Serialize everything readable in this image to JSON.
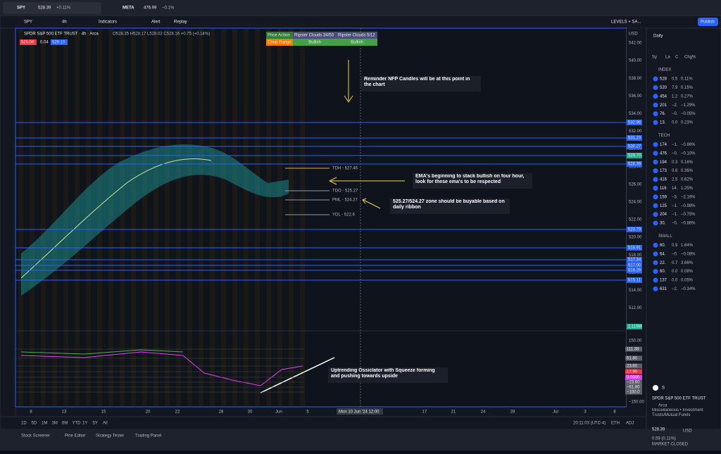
{
  "tabs": [
    {
      "symbol": "SPY",
      "price": "528.39",
      "change": "+0.11%"
    },
    {
      "symbol": "META",
      "price": "476.99",
      "change": "−0.1%"
    }
  ],
  "toolbar": {
    "symbol": "SPY",
    "interval": "4h",
    "indicators": "Indicators",
    "alert": "Alert",
    "replay": "Replay",
    "layout": "LEVELS + SA...",
    "publish": "Publish"
  },
  "legend": {
    "title": "SPDR S&P 500 ETF TRUST · 4h · Arca",
    "ohlc": "O528.35 H528.17 L528.02 C528.16 +0.75 (+0.14%)",
    "bid": "529.06",
    "spread": "0.04",
    "ask": "529.10"
  },
  "signal_table": {
    "headers": [
      "Price Action",
      "Ripster Clouds 34/50",
      "Ripster Clouds 5/12"
    ],
    "row": [
      "Chop Range",
      "Bullish",
      "Bullish"
    ]
  },
  "price_axis": {
    "currency": "USD",
    "labels": [
      "542.00",
      "540.00",
      "538.00",
      "536.00",
      "534.00",
      "532.00",
      "530.00",
      "528.00",
      "526.00",
      "524.00",
      "522.00",
      "520.00",
      "518.00",
      "516.00",
      "514.00",
      "512.00"
    ]
  },
  "levels": [
    "532.96",
    "531.23",
    "530.27",
    "529.70",
    "528.39",
    "520.79",
    "518.91",
    "517.34",
    "517.00",
    "516.28",
    "515.11"
  ],
  "volume_label": "2.119M",
  "chart_labels": [
    "TDH - 527.46",
    "TDO - 525.27",
    "PML - 524.27",
    "YDL - 522.6"
  ],
  "annotations": [
    "Reminder NFP Candles will be at this point in the chart",
    "EMA's beginning to stack bullish on four hour, look for these ema's to be respected",
    "525.27/524.27 zone should be buyable based on daily ribbon",
    "Uptrending Ossiclator with Squeeze forming and pushing towards upside"
  ],
  "indicator_axis": {
    "top": "150.00",
    "bottom": "−150.00",
    "labels": [
      "111.38",
      "61.80",
      "23.60",
      "17.90",
      "0.0000",
      "−23.60",
      "−61.80",
      "−100.0"
    ]
  },
  "time_axis": {
    "labels": [
      "8",
      "13",
      "15",
      "20",
      "22",
      "28",
      "30",
      "Jun",
      "5",
      "17",
      "21",
      "24",
      "28",
      "Jul",
      "3",
      "8"
    ],
    "crosshair": "Mon 10 Jun '24  12:00"
  },
  "timeframes": [
    "1D",
    "5D",
    "1M",
    "3M",
    "6M",
    "YTD",
    "1Y",
    "5Y",
    "All"
  ],
  "status": {
    "clock": "20:11:03 (UTC-4)",
    "eth": "ETH",
    "adj": "ADJ"
  },
  "bottom_tabs": [
    "Stock Screener",
    "Pine Editor",
    "Strategy Tester",
    "Trading Panel"
  ],
  "watchlist": {
    "title": "Daily",
    "columns": [
      "Sy",
      "La",
      "C",
      "Chg%"
    ],
    "sections": [
      {
        "name": "INDEX",
        "rows": [
          [
            "528",
            "0.5",
            "0.11%"
          ],
          [
            "520",
            "7.9",
            "0.15%"
          ],
          [
            "454",
            "1.2",
            "0.27%"
          ],
          [
            "201",
            "−2.",
            "−1.29%"
          ],
          [
            "76.",
            "−0.",
            "−0.05%"
          ],
          [
            "13.",
            "0.0",
            "0.23%"
          ]
        ]
      },
      {
        "name": "TECH",
        "rows": [
          [
            "174",
            "−1.",
            "−0.86%"
          ],
          [
            "476",
            "−0.",
            "−0.10%"
          ],
          [
            "194",
            "0.3",
            "0.16%"
          ],
          [
            "173",
            "0.6",
            "0.36%"
          ],
          [
            "416",
            "2.5",
            "0.62%"
          ],
          [
            "116",
            "14.",
            "1.25%"
          ],
          [
            "159",
            "−3.",
            "−2.16%"
          ],
          [
            "125",
            "−1.",
            "−0.98%"
          ],
          [
            "204",
            "−1.",
            "−0.75%"
          ],
          [
            "30.",
            "−0.",
            "−0.86%"
          ]
        ]
      },
      {
        "name": "SMALL",
        "rows": [
          [
            "60.",
            "0.9",
            "1.64%"
          ],
          [
            "64.",
            "−0.",
            "−0.08%"
          ],
          [
            "22.",
            "0.7",
            "3.66%"
          ],
          [
            "60.",
            "0.0",
            "0.08%"
          ],
          [
            "137",
            "0.0",
            "0.05%"
          ],
          [
            "631",
            "−2.",
            "−0.34%"
          ]
        ]
      }
    ]
  },
  "details": {
    "symbol": "S",
    "name": "SPDR S&P 500 ETF TRUST",
    "exchange": "Arca",
    "category": "Miscellaneous • Investment Trusts/Mutual Funds",
    "price": "528.39",
    "currency": "USD",
    "change": "0.59 (0.11%)",
    "state": "MARKET CLOSED"
  }
}
